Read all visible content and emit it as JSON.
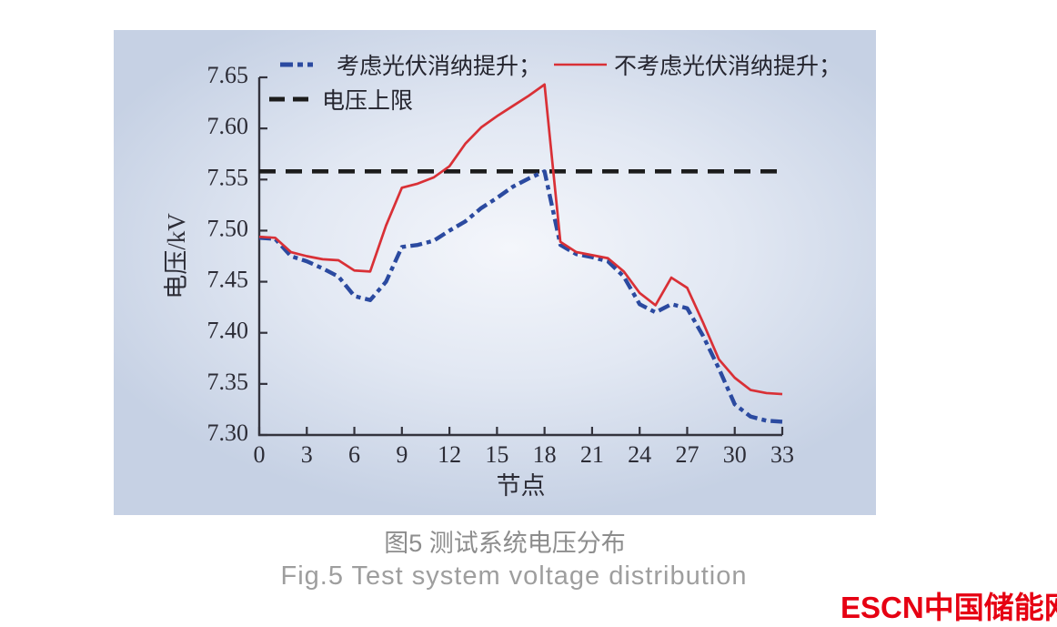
{
  "panel": {
    "bg_outer": "#c6d1e4",
    "bg_inner": "#f4f6fb"
  },
  "legend": {
    "items": [
      {
        "label": "考虑光伏消纳提升；",
        "color": "#2b4aa0",
        "style": "dashdot"
      },
      {
        "label": "不考虑光伏消纳提升；",
        "color": "#d93036",
        "style": "solid"
      },
      {
        "label": "电压上限",
        "color": "#1c1c1c",
        "style": "dashed"
      }
    ]
  },
  "chart_data": {
    "type": "line",
    "title": "",
    "xlabel": "节点",
    "ylabel": "电压/kV",
    "xlim": [
      0,
      33
    ],
    "ylim": [
      7.3,
      7.65
    ],
    "x_ticks": [
      0,
      3,
      6,
      9,
      12,
      15,
      18,
      21,
      24,
      27,
      30,
      33
    ],
    "y_ticks": [
      7.3,
      7.35,
      7.4,
      7.45,
      7.5,
      7.55,
      7.6,
      7.65
    ],
    "grid": false,
    "legend_position": "top-left",
    "x": [
      0,
      1,
      2,
      3,
      4,
      5,
      6,
      7,
      8,
      9,
      10,
      11,
      12,
      13,
      14,
      15,
      16,
      17,
      18,
      19,
      20,
      21,
      22,
      23,
      24,
      25,
      26,
      27,
      28,
      29,
      30,
      31,
      32,
      33
    ],
    "series": [
      {
        "name": "考虑光伏消纳提升",
        "color": "#2b4aa0",
        "dash": "dashdot",
        "values": [
          7.493,
          7.492,
          7.475,
          7.47,
          7.463,
          7.455,
          7.436,
          7.432,
          7.45,
          7.484,
          7.486,
          7.49,
          7.5,
          7.509,
          7.522,
          7.532,
          7.543,
          7.551,
          7.558,
          7.486,
          7.477,
          7.474,
          7.47,
          7.455,
          7.428,
          7.42,
          7.428,
          7.424,
          7.397,
          7.365,
          7.33,
          7.318,
          7.314,
          7.313
        ]
      },
      {
        "name": "不考虑光伏消纳提升",
        "color": "#d93036",
        "dash": "solid",
        "values": [
          7.494,
          7.493,
          7.479,
          7.475,
          7.472,
          7.471,
          7.461,
          7.46,
          7.505,
          7.542,
          7.546,
          7.552,
          7.563,
          7.585,
          7.601,
          7.612,
          7.622,
          7.632,
          7.643,
          7.489,
          7.479,
          7.476,
          7.473,
          7.46,
          7.439,
          7.427,
          7.454,
          7.444,
          7.41,
          7.374,
          7.356,
          7.344,
          7.341,
          7.34
        ]
      }
    ],
    "upper_limit": {
      "name": "电压上限",
      "value": 7.558,
      "color": "#1c1c1c"
    }
  },
  "caption": {
    "zh": "图5  测试系统电压分布",
    "en": "Fig.5  Test system voltage distribution"
  },
  "logo": {
    "text_en": "ESCN",
    "text_zh": "中国储能网",
    "color": "#e60012"
  }
}
